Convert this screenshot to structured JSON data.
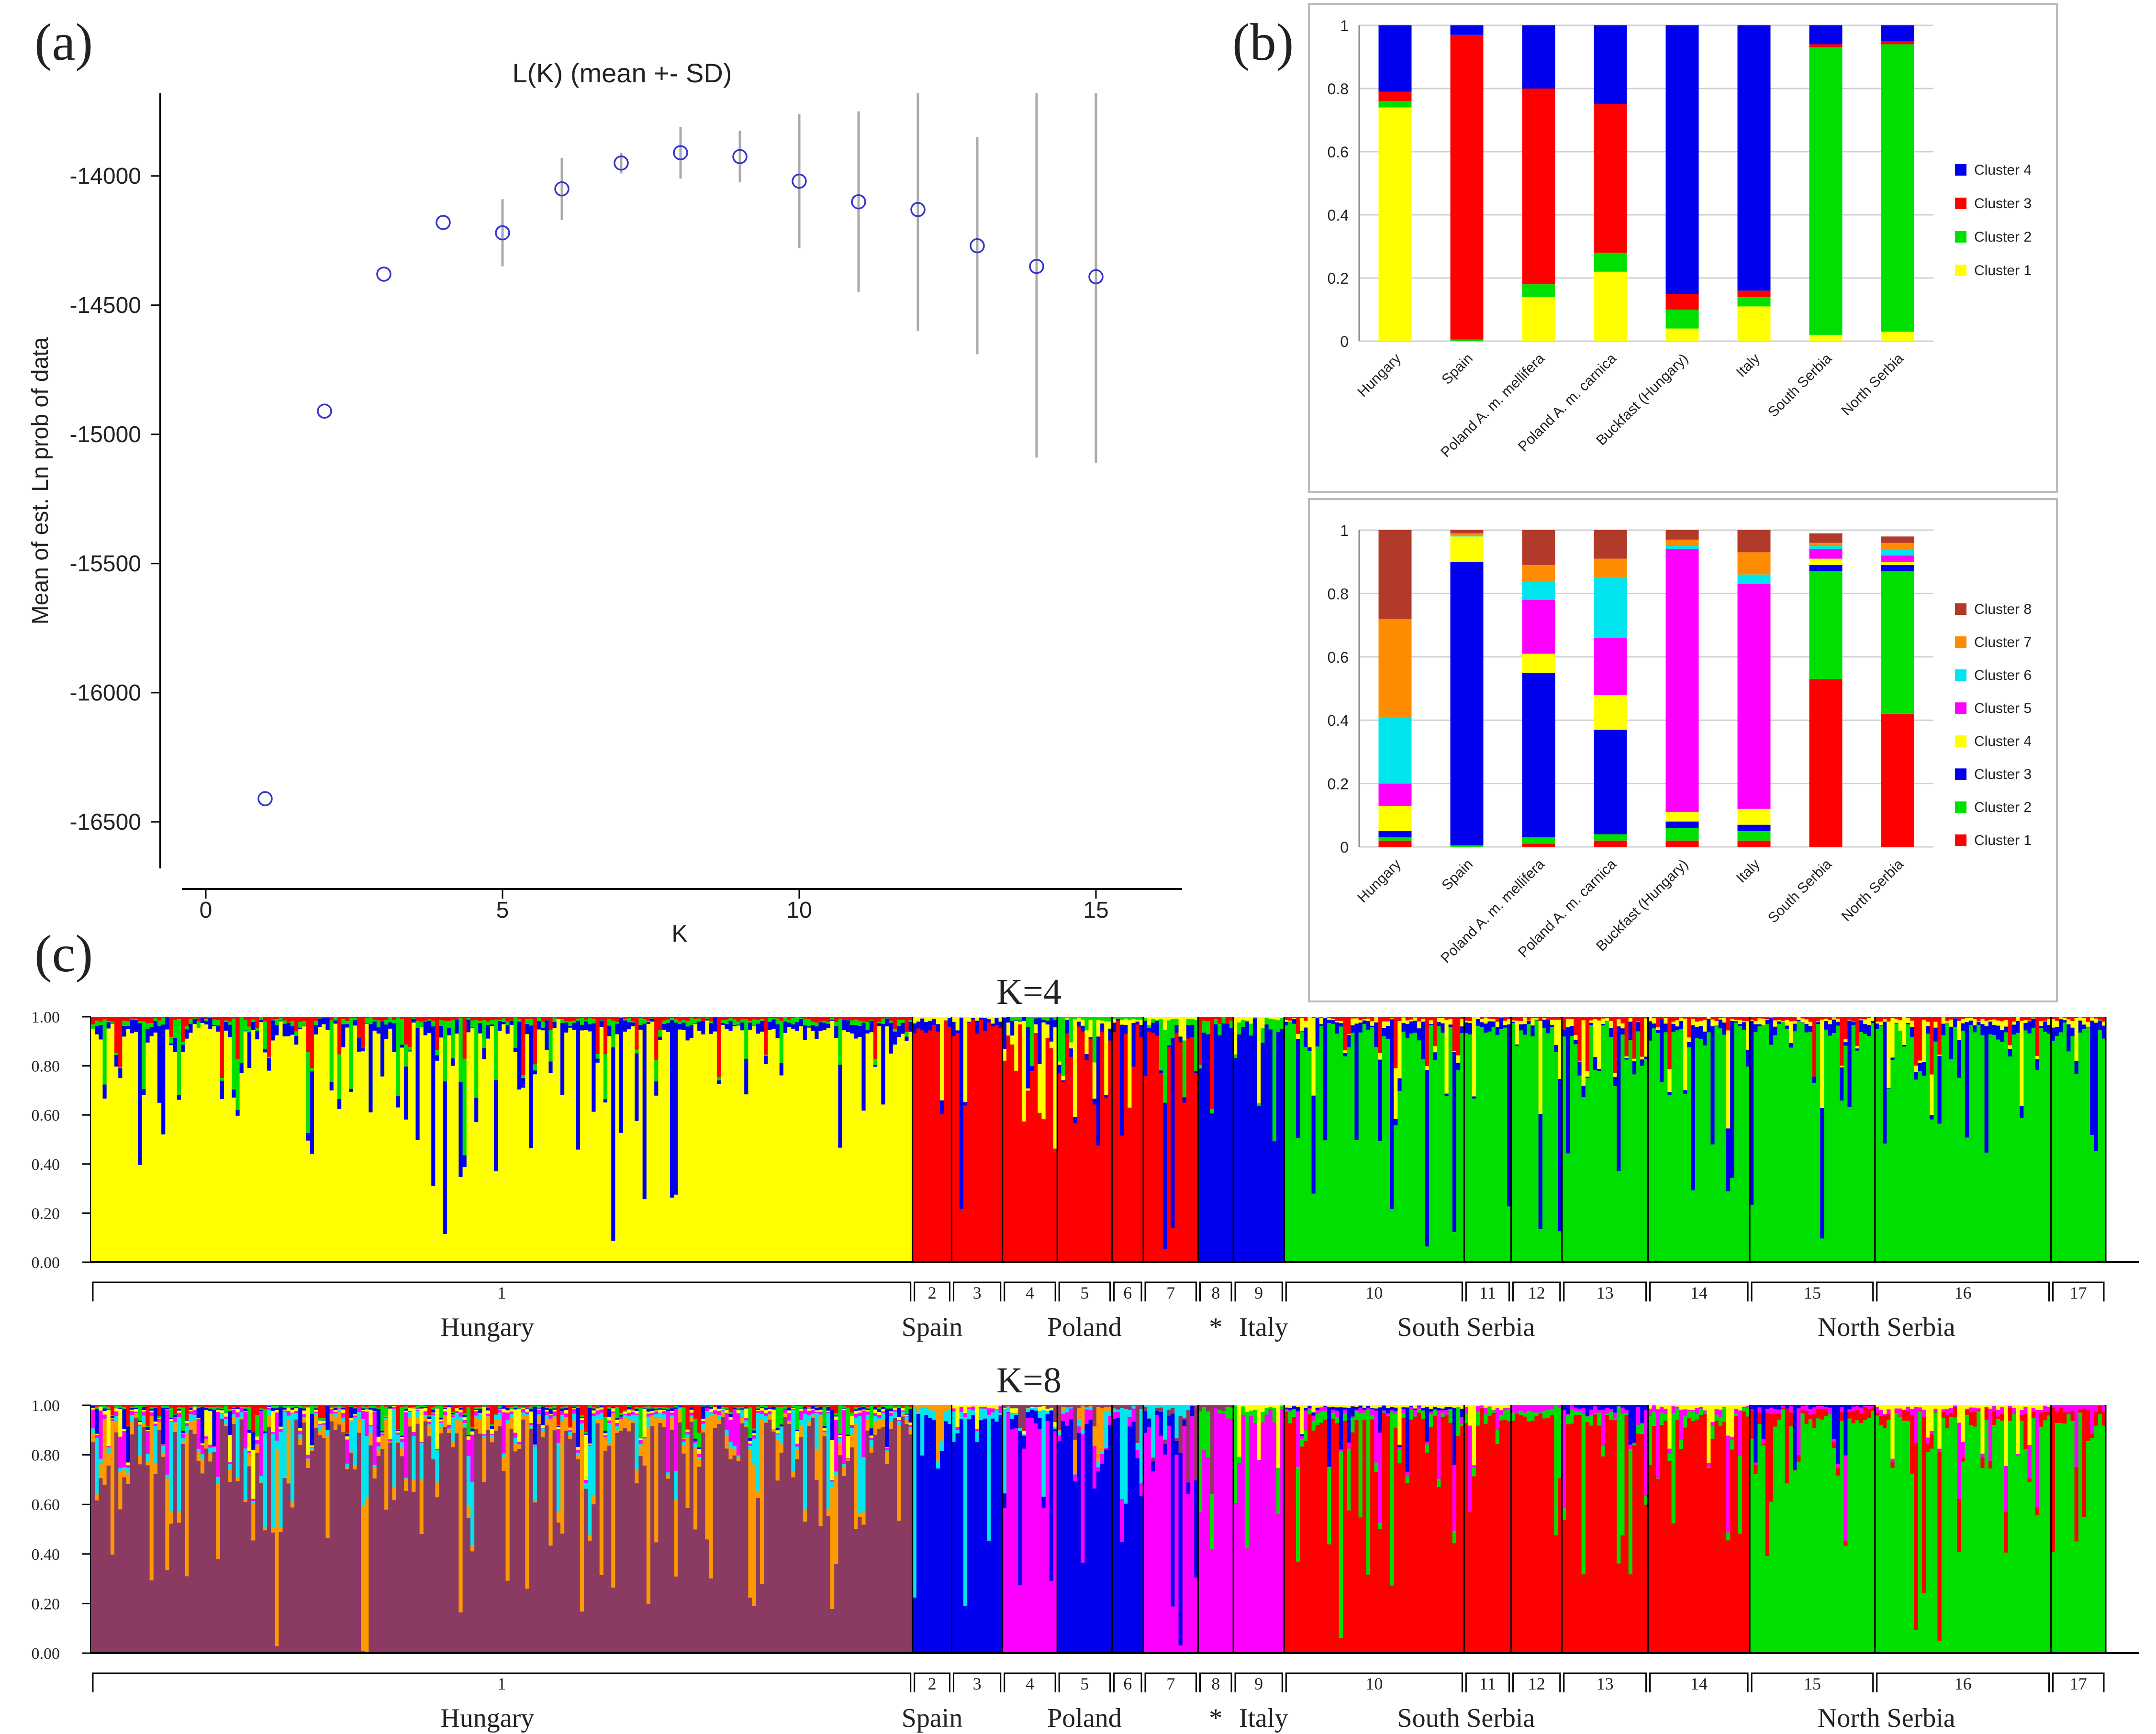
{
  "panel_labels": {
    "a": "(a)",
    "b": "(b)",
    "c": "(c)"
  },
  "colors": {
    "point": "#3333cc",
    "errbar": "#aaaaaa",
    "c1": "#ffff00",
    "c2": "#00e000",
    "c3": "#ff0000",
    "c4": "#0000ee",
    "c5": "#ff00ff",
    "c6": "#00e5ee",
    "c7": "#ff8c00",
    "c8": "#b23a2a",
    "hungary_k8_c8": "#8b3a62",
    "hungary_k8_c7": "#ff9900"
  },
  "chart_data": [
    {
      "id": "a",
      "type": "scatter",
      "title": "L(K) (mean +- SD)",
      "xlabel": "K",
      "ylabel": "Mean of est. Ln prob of data",
      "x": [
        1,
        2,
        3,
        4,
        5,
        6,
        7,
        8,
        9,
        10,
        11,
        12,
        13,
        14,
        15
      ],
      "y": [
        -16410,
        -14910,
        -14380,
        -14180,
        -14220,
        -14050,
        -13950,
        -13910,
        -13925,
        -14020,
        -14100,
        -14130,
        -14270,
        -14350,
        -14390
      ],
      "sd": [
        0,
        0,
        0,
        0,
        130,
        120,
        40,
        100,
        100,
        260,
        350,
        470,
        420,
        740,
        720
      ],
      "xticks": [
        "0",
        "5",
        "10",
        "15"
      ],
      "xtick_values": [
        0,
        5,
        10,
        15
      ],
      "yticks": [
        "-14000",
        "-14500",
        "-15000",
        "-15500",
        "-16000",
        "-16500"
      ],
      "ytick_values": [
        -14000,
        -14500,
        -15000,
        -15500,
        -16000,
        -16500
      ],
      "xlim": [
        -0.4,
        16.4
      ],
      "ylim": [
        -16680,
        -13680
      ]
    },
    {
      "id": "b-top",
      "type": "bar",
      "stacked": true,
      "categories": [
        "Hungary",
        "Spain",
        "Poland A. m. mellifera",
        "Poland A. m. carnica",
        "Buckfast (Hungary)",
        "Italy",
        "South Serbia",
        "North Serbia"
      ],
      "yticks": [
        "0",
        "0.2",
        "0.4",
        "0.6",
        "0.8",
        "1"
      ],
      "ylim": [
        0,
        1
      ],
      "series": [
        {
          "name": "Cluster 1",
          "color": "#ffff00",
          "values": [
            0.74,
            0.0,
            0.14,
            0.22,
            0.04,
            0.11,
            0.02,
            0.03
          ]
        },
        {
          "name": "Cluster 2",
          "color": "#00e000",
          "values": [
            0.02,
            0.005,
            0.04,
            0.06,
            0.06,
            0.03,
            0.91,
            0.91
          ]
        },
        {
          "name": "Cluster 3",
          "color": "#ff0000",
          "values": [
            0.03,
            0.965,
            0.62,
            0.47,
            0.05,
            0.02,
            0.01,
            0.01
          ]
        },
        {
          "name": "Cluster 4",
          "color": "#0000ee",
          "values": [
            0.21,
            0.03,
            0.2,
            0.25,
            0.85,
            0.84,
            0.06,
            0.05
          ]
        }
      ],
      "legend": [
        "Cluster 4",
        "Cluster 3",
        "Cluster 2",
        "Cluster 1"
      ],
      "legend_placement": "right"
    },
    {
      "id": "b-bottom",
      "type": "bar",
      "stacked": true,
      "categories": [
        "Hungary",
        "Spain",
        "Poland A. m. mellifera",
        "Poland A. m. carnica",
        "Buckfast (Hungary)",
        "Italy",
        "South Serbia",
        "North Serbia"
      ],
      "yticks": [
        "0",
        "0.2",
        "0.4",
        "0.6",
        "0.8",
        "1"
      ],
      "ylim": [
        0,
        1
      ],
      "series": [
        {
          "name": "Cluster 1",
          "color": "#ff0000",
          "values": [
            0.02,
            0.0,
            0.01,
            0.02,
            0.02,
            0.02,
            0.53,
            0.42
          ]
        },
        {
          "name": "Cluster 2",
          "color": "#00e000",
          "values": [
            0.01,
            0.005,
            0.02,
            0.02,
            0.04,
            0.03,
            0.34,
            0.45
          ]
        },
        {
          "name": "Cluster 3",
          "color": "#0000ee",
          "values": [
            0.02,
            0.895,
            0.52,
            0.33,
            0.02,
            0.02,
            0.02,
            0.02
          ]
        },
        {
          "name": "Cluster 4",
          "color": "#ffff00",
          "values": [
            0.08,
            0.08,
            0.06,
            0.11,
            0.03,
            0.05,
            0.02,
            0.01
          ]
        },
        {
          "name": "Cluster 5",
          "color": "#ff00ff",
          "values": [
            0.07,
            0.0,
            0.17,
            0.18,
            0.83,
            0.71,
            0.03,
            0.02
          ]
        },
        {
          "name": "Cluster 6",
          "color": "#00e5ee",
          "values": [
            0.21,
            0.005,
            0.06,
            0.19,
            0.01,
            0.03,
            0.01,
            0.02
          ]
        },
        {
          "name": "Cluster 7",
          "color": "#ff8c00",
          "values": [
            0.31,
            0.005,
            0.05,
            0.06,
            0.02,
            0.07,
            0.01,
            0.02
          ]
        },
        {
          "name": "Cluster 8",
          "color": "#b23a2a",
          "values": [
            0.28,
            0.01,
            0.11,
            0.09,
            0.03,
            0.07,
            0.03,
            0.02
          ]
        }
      ],
      "legend": [
        "Cluster 8",
        "Cluster 7",
        "Cluster 6",
        "Cluster 5",
        "Cluster 4",
        "Cluster 3",
        "Cluster 2",
        "Cluster 1"
      ],
      "legend_placement": "right"
    },
    {
      "id": "c-k4",
      "type": "bar",
      "stacked": true,
      "title": "K=4",
      "yticks": [
        "0.00",
        "0.20",
        "0.40",
        "0.60",
        "0.80",
        "1.00"
      ],
      "ylim": [
        0,
        1
      ],
      "segments": [
        {
          "label": "1",
          "n": 210,
          "main": "#ffff00",
          "mix": [
            "#0000ee",
            "#00e000",
            "#ff0000"
          ]
        },
        {
          "label": "2",
          "n": 10,
          "main": "#ff0000",
          "mix": [
            "#0000ee",
            "#ffff00"
          ]
        },
        {
          "label": "3",
          "n": 13,
          "main": "#ff0000",
          "mix": [
            "#0000ee",
            "#ffff00"
          ]
        },
        {
          "label": "4",
          "n": 14,
          "main": "#ff0000",
          "mix": [
            "#ffff00",
            "#0000ee",
            "#00e000"
          ]
        },
        {
          "label": "5",
          "n": 14,
          "main": "#ff0000",
          "mix": [
            "#0000ee",
            "#ffff00",
            "#00e000"
          ]
        },
        {
          "label": "6",
          "n": 8,
          "main": "#ff0000",
          "mix": [
            "#0000ee",
            "#ffff00",
            "#00e000"
          ]
        },
        {
          "label": "7",
          "n": 14,
          "main": "#ff0000",
          "mix": [
            "#0000ee",
            "#00e000",
            "#ffff00"
          ]
        },
        {
          "label": "8",
          "n": 9,
          "main": "#0000ee",
          "mix": [
            "#00e000",
            "#ff0000"
          ]
        },
        {
          "label": "9",
          "n": 13,
          "main": "#0000ee",
          "mix": [
            "#00e000",
            "#ffff00"
          ]
        },
        {
          "label": "10",
          "n": 46,
          "main": "#00e000",
          "mix": [
            "#0000ee",
            "#ffff00",
            "#ff0000"
          ]
        },
        {
          "label": "11",
          "n": 12,
          "main": "#00e000",
          "mix": [
            "#0000ee",
            "#ffff00",
            "#ff0000"
          ]
        },
        {
          "label": "12",
          "n": 13,
          "main": "#00e000",
          "mix": [
            "#0000ee",
            "#ffff00",
            "#ff0000"
          ]
        },
        {
          "label": "13",
          "n": 22,
          "main": "#00e000",
          "mix": [
            "#0000ee",
            "#ffff00",
            "#ff0000"
          ]
        },
        {
          "label": "14",
          "n": 26,
          "main": "#00e000",
          "mix": [
            "#0000ee",
            "#ffff00",
            "#ff0000"
          ]
        },
        {
          "label": "15",
          "n": 32,
          "main": "#00e000",
          "mix": [
            "#0000ee",
            "#ffff00",
            "#ff0000"
          ]
        },
        {
          "label": "16",
          "n": 45,
          "main": "#00e000",
          "mix": [
            "#0000ee",
            "#ffff00",
            "#ff0000"
          ]
        },
        {
          "label": "17",
          "n": 14,
          "main": "#00e000",
          "mix": [
            "#0000ee",
            "#ffff00",
            "#ff0000"
          ]
        }
      ],
      "groups": [
        "Hungary",
        "Spain",
        "Poland",
        "*",
        "Italy",
        "South Serbia",
        "North Serbia"
      ]
    },
    {
      "id": "c-k8",
      "type": "bar",
      "stacked": true,
      "title": "K=8",
      "yticks": [
        "0.00",
        "0.20",
        "0.40",
        "0.60",
        "0.80",
        "1.00"
      ],
      "ylim": [
        0,
        1
      ],
      "segments": [
        {
          "label": "1",
          "n": 210,
          "main": "#8b3a62",
          "mix": [
            "#ff9900",
            "#00e5ee",
            "#ff00ff",
            "#ffff00",
            "#0000ee",
            "#00e000",
            "#ff0000"
          ]
        },
        {
          "label": "2",
          "n": 10,
          "main": "#0000ee",
          "mix": [
            "#00e5ee",
            "#ff9900"
          ]
        },
        {
          "label": "3",
          "n": 13,
          "main": "#0000ee",
          "mix": [
            "#00e5ee",
            "#ff00ff",
            "#ffff00"
          ]
        },
        {
          "label": "4",
          "n": 14,
          "main": "#ff00ff",
          "mix": [
            "#0000ee",
            "#00e5ee",
            "#ffff00",
            "#8b3a62"
          ]
        },
        {
          "label": "5",
          "n": 14,
          "main": "#0000ee",
          "mix": [
            "#ff00ff",
            "#00e5ee",
            "#ff9900",
            "#8b3a62"
          ]
        },
        {
          "label": "6",
          "n": 8,
          "main": "#0000ee",
          "mix": [
            "#ff00ff",
            "#00e5ee",
            "#8b3a62"
          ]
        },
        {
          "label": "7",
          "n": 14,
          "main": "#ff00ff",
          "mix": [
            "#0000ee",
            "#8b3a62",
            "#00e5ee"
          ]
        },
        {
          "label": "8",
          "n": 9,
          "main": "#ff00ff",
          "mix": [
            "#00e000",
            "#8b3a62"
          ]
        },
        {
          "label": "9",
          "n": 13,
          "main": "#ff00ff",
          "mix": [
            "#00e000",
            "#ffff00"
          ]
        },
        {
          "label": "10",
          "n": 46,
          "main": "#ff0000",
          "mix": [
            "#00e000",
            "#ff00ff",
            "#0000ee",
            "#ffff00"
          ]
        },
        {
          "label": "11",
          "n": 12,
          "main": "#ff0000",
          "mix": [
            "#00e000",
            "#ff00ff",
            "#ffff00"
          ]
        },
        {
          "label": "12",
          "n": 13,
          "main": "#ff0000",
          "mix": [
            "#00e000",
            "#ff00ff"
          ]
        },
        {
          "label": "13",
          "n": 22,
          "main": "#ff0000",
          "mix": [
            "#00e000",
            "#ff00ff",
            "#0000ee"
          ]
        },
        {
          "label": "14",
          "n": 26,
          "main": "#ff0000",
          "mix": [
            "#00e000",
            "#ff00ff",
            "#ffff00"
          ]
        },
        {
          "label": "15",
          "n": 32,
          "main": "#00e000",
          "mix": [
            "#ff0000",
            "#ff00ff",
            "#0000ee"
          ]
        },
        {
          "label": "16",
          "n": 45,
          "main": "#00e000",
          "mix": [
            "#ff0000",
            "#ff00ff",
            "#ffff00"
          ]
        },
        {
          "label": "17",
          "n": 14,
          "main": "#00e000",
          "mix": [
            "#ff0000",
            "#ff00ff"
          ]
        }
      ],
      "groups": [
        "Hungary",
        "Spain",
        "Poland",
        "*",
        "Italy",
        "South Serbia",
        "North Serbia"
      ]
    }
  ]
}
